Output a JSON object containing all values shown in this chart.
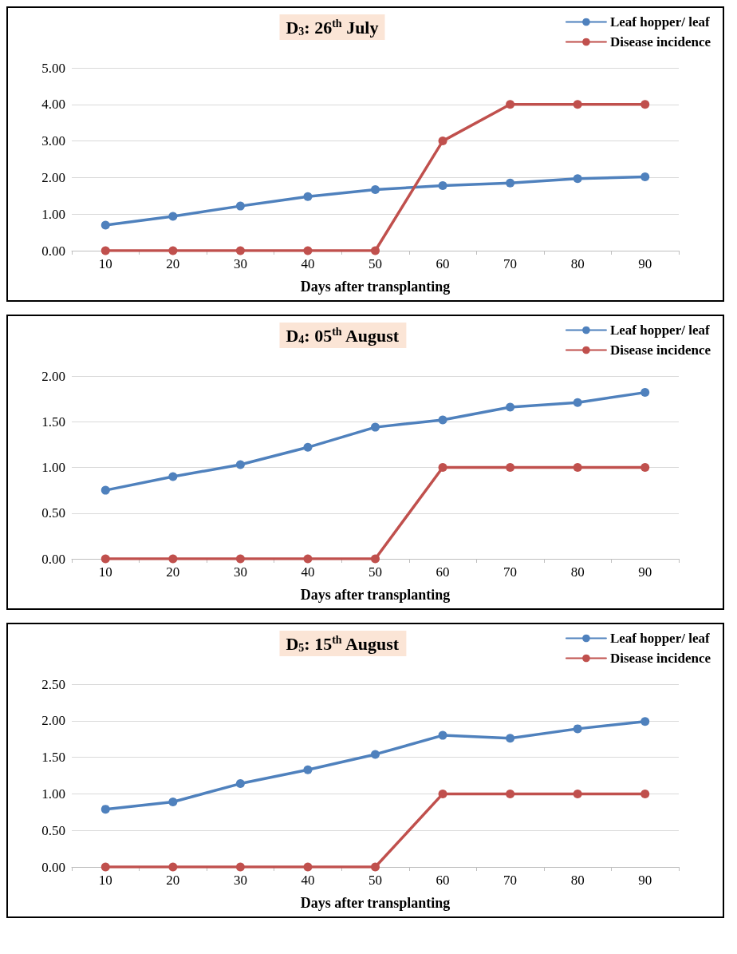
{
  "chart_data": [
    {
      "type": "line",
      "title": "D$_{3}$: 26$^{th}$ July",
      "xlabel": "Days after transplanting",
      "categories": [
        "10",
        "20",
        "30",
        "40",
        "50",
        "60",
        "70",
        "80",
        "90"
      ],
      "series": [
        {
          "name": "Leaf hopper/ leaf",
          "color": "#4f81bd",
          "values": [
            0.7,
            0.94,
            1.22,
            1.48,
            1.67,
            1.78,
            1.85,
            1.97,
            2.02
          ]
        },
        {
          "name": "Disease incidence",
          "color": "#c0504d",
          "values": [
            0,
            0,
            0,
            0,
            0,
            3,
            4,
            4,
            4
          ]
        }
      ],
      "ylim": [
        0,
        5
      ],
      "yticks": [
        {
          "value": 0,
          "label": "0.00"
        },
        {
          "value": 1,
          "label": "1.00"
        },
        {
          "value": 2,
          "label": "2.00"
        },
        {
          "value": 3,
          "label": "3.00"
        },
        {
          "value": 4,
          "label": "4.00"
        },
        {
          "value": 5,
          "label": "5.00"
        }
      ],
      "grid": "y",
      "legend": "top right",
      "marker": "circle",
      "line_style": "solid"
    },
    {
      "type": "line",
      "title": "D$_{4}$: 05$^{th}$ August",
      "xlabel": "Days after transplanting",
      "categories": [
        "10",
        "20",
        "30",
        "40",
        "50",
        "60",
        "70",
        "80",
        "90"
      ],
      "series": [
        {
          "name": "Leaf hopper/ leaf",
          "color": "#4f81bd",
          "values": [
            0.75,
            0.9,
            1.03,
            1.22,
            1.44,
            1.52,
            1.66,
            1.71,
            1.82
          ]
        },
        {
          "name": "Disease incidence",
          "color": "#c0504d",
          "values": [
            0,
            0,
            0,
            0,
            0,
            1,
            1,
            1,
            1
          ]
        }
      ],
      "ylim": [
        0,
        2
      ],
      "yticks": [
        {
          "value": 0,
          "label": "0.00"
        },
        {
          "value": 0.5,
          "label": "0.50"
        },
        {
          "value": 1,
          "label": "1.00"
        },
        {
          "value": 1.5,
          "label": "1.50"
        },
        {
          "value": 2,
          "label": "2.00"
        }
      ],
      "grid": "y",
      "legend": "top right",
      "marker": "circle",
      "line_style": "solid"
    },
    {
      "type": "line",
      "title": "D$_{5}$: 15$^{th}$ August",
      "xlabel": "Days after transplanting",
      "categories": [
        "10",
        "20",
        "30",
        "40",
        "50",
        "60",
        "70",
        "80",
        "90"
      ],
      "series": [
        {
          "name": "Leaf hopper/ leaf",
          "color": "#4f81bd",
          "values": [
            0.79,
            0.89,
            1.14,
            1.33,
            1.54,
            1.8,
            1.76,
            1.89,
            1.99
          ]
        },
        {
          "name": "Disease incidence",
          "color": "#c0504d",
          "values": [
            0,
            0,
            0,
            0,
            0,
            1,
            1,
            1,
            1
          ]
        }
      ],
      "ylim": [
        0,
        2.5
      ],
      "yticks": [
        {
          "value": 0,
          "label": "0.00"
        },
        {
          "value": 0.5,
          "label": "0.50"
        },
        {
          "value": 1,
          "label": "1.00"
        },
        {
          "value": 1.5,
          "label": "1.50"
        },
        {
          "value": 2,
          "label": "2.00"
        },
        {
          "value": 2.5,
          "label": "2.50"
        }
      ],
      "grid": "y",
      "legend": "top right",
      "marker": "circle",
      "line_style": "solid"
    }
  ]
}
